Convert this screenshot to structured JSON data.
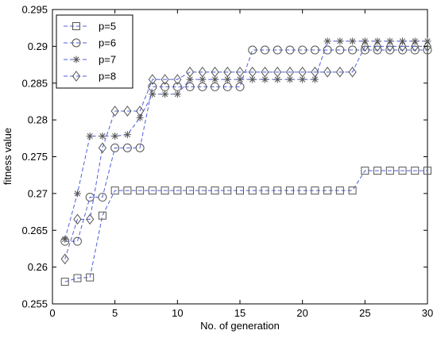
{
  "chart_data": {
    "type": "line",
    "title": "",
    "xlabel": "No. of generation",
    "ylabel": "fitness value",
    "xlim": [
      0,
      30
    ],
    "ylim": [
      0.255,
      0.295
    ],
    "xticks": [
      0,
      5,
      10,
      15,
      20,
      25,
      30
    ],
    "yticks": [
      0.255,
      0.26,
      0.265,
      0.27,
      0.275,
      0.28,
      0.285,
      0.29,
      0.295
    ],
    "xtick_labels": [
      "0",
      "5",
      "10",
      "15",
      "20",
      "25",
      "30"
    ],
    "ytick_labels": [
      "0.255",
      "0.26",
      "0.265",
      "0.27",
      "0.275",
      "0.28",
      "0.285",
      "0.29",
      "0.295"
    ],
    "grid": false,
    "legend_position": "top-left",
    "line_color": "#4f5fd8",
    "marker_color": "#555555",
    "x": [
      1,
      2,
      3,
      4,
      5,
      6,
      7,
      8,
      9,
      10,
      11,
      12,
      13,
      14,
      15,
      16,
      17,
      18,
      19,
      20,
      21,
      22,
      23,
      24,
      25,
      26,
      27,
      28,
      29,
      30
    ],
    "series": [
      {
        "name": "p=5",
        "marker": "square",
        "values": [
          0.258,
          0.2585,
          0.2586,
          0.267,
          0.2704,
          0.2704,
          0.2704,
          0.2704,
          0.2704,
          0.2704,
          0.2704,
          0.2704,
          0.2704,
          0.2704,
          0.2704,
          0.2704,
          0.2704,
          0.2704,
          0.2704,
          0.2704,
          0.2704,
          0.2704,
          0.2704,
          0.2704,
          0.2731,
          0.2731,
          0.2731,
          0.2731,
          0.2731,
          0.2731
        ]
      },
      {
        "name": "p=6",
        "marker": "circle",
        "values": [
          0.2635,
          0.2635,
          0.2695,
          0.2695,
          0.2762,
          0.2762,
          0.2762,
          0.2845,
          0.2845,
          0.2845,
          0.2845,
          0.2845,
          0.2845,
          0.2845,
          0.2845,
          0.2895,
          0.2895,
          0.2895,
          0.2895,
          0.2895,
          0.2895,
          0.2895,
          0.2895,
          0.2895,
          0.2895,
          0.2895,
          0.2895,
          0.2895,
          0.2895,
          0.2895
        ]
      },
      {
        "name": "p=7",
        "marker": "star",
        "values": [
          0.2638,
          0.27,
          0.2778,
          0.2778,
          0.2778,
          0.278,
          0.2803,
          0.2835,
          0.2835,
          0.2835,
          0.2855,
          0.2855,
          0.2855,
          0.2855,
          0.2855,
          0.2855,
          0.2855,
          0.2855,
          0.2855,
          0.2855,
          0.2855,
          0.2907,
          0.2907,
          0.2907,
          0.2907,
          0.2907,
          0.2907,
          0.2907,
          0.2907,
          0.2907
        ]
      },
      {
        "name": "p=8",
        "marker": "diamond",
        "values": [
          0.2611,
          0.2665,
          0.2665,
          0.2762,
          0.2812,
          0.2812,
          0.2812,
          0.2855,
          0.2855,
          0.2855,
          0.2865,
          0.2865,
          0.2865,
          0.2865,
          0.2865,
          0.2865,
          0.2865,
          0.2865,
          0.2865,
          0.2865,
          0.2865,
          0.2865,
          0.2865,
          0.2865,
          0.29,
          0.29,
          0.29,
          0.29,
          0.29,
          0.29
        ]
      }
    ]
  }
}
